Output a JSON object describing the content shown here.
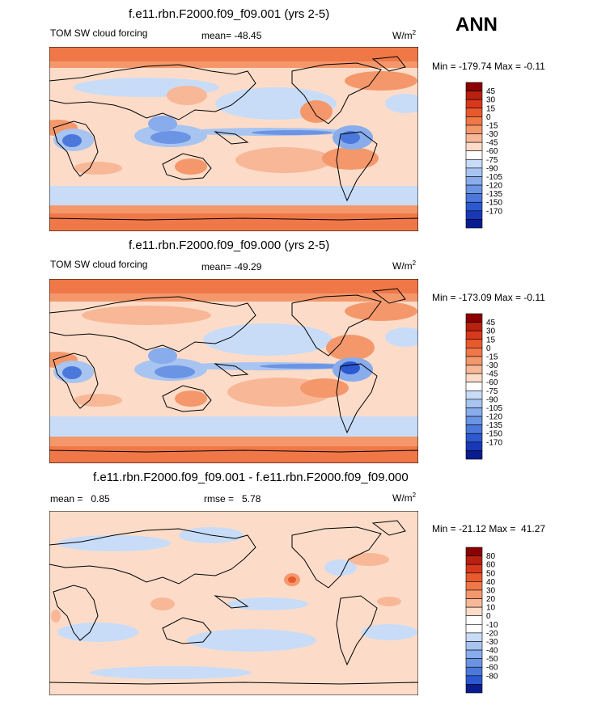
{
  "season": "ANN",
  "units": "W/m",
  "units_sup": "2",
  "panels": [
    {
      "title": "f.e11.rbn.F2000.f09_f09.001 (yrs 2-5)",
      "left_label": "TOM SW cloud forcing",
      "center_label": "mean= -48.45",
      "minmax": "Min = -179.74 Max =  -0.11",
      "colorbar": {
        "colors": [
          "#8b0000",
          "#b82010",
          "#d8381c",
          "#e85a2c",
          "#f07848",
          "#f4986c",
          "#f8b898",
          "#fcdcc8",
          "#ffffff",
          "#c8dcf8",
          "#a8c4f0",
          "#88acec",
          "#6c94e4",
          "#4c78dc",
          "#2c58d0",
          "#1838b8",
          "#081c90"
        ],
        "labels": [
          "45",
          "30",
          "15",
          "0",
          "-15",
          "-30",
          "-45",
          "-60",
          "-75",
          "-90",
          "-105",
          "-120",
          "-135",
          "-150",
          "-170"
        ]
      }
    },
    {
      "title": "f.e11.rbn.F2000.f09_f09.000 (yrs 2-5)",
      "left_label": "TOM SW cloud forcing",
      "center_label": "mean= -49.29",
      "minmax": "Min = -173.09 Max =  -0.11",
      "colorbar": {
        "colors": [
          "#8b0000",
          "#b82010",
          "#d8381c",
          "#e85a2c",
          "#f07848",
          "#f4986c",
          "#f8b898",
          "#fcdcc8",
          "#ffffff",
          "#c8dcf8",
          "#a8c4f0",
          "#88acec",
          "#6c94e4",
          "#4c78dc",
          "#2c58d0",
          "#1838b8",
          "#081c90"
        ],
        "labels": [
          "45",
          "30",
          "15",
          "0",
          "-15",
          "-30",
          "-45",
          "-60",
          "-75",
          "-90",
          "-105",
          "-120",
          "-135",
          "-150",
          "-170"
        ]
      }
    },
    {
      "title": "f.e11.rbn.F2000.f09_f09.001 - f.e11.rbn.F2000.f09_f09.000",
      "left_label": "mean =   0.85",
      "center_label": "rmse =   5.78",
      "minmax": "Min = -21.12 Max =  41.27",
      "colorbar": {
        "colors": [
          "#8b0000",
          "#b82010",
          "#d8381c",
          "#e85a2c",
          "#f07848",
          "#f4986c",
          "#f8b898",
          "#fcdcc8",
          "#ffffff",
          "#ffffff",
          "#c8dcf8",
          "#a8c4f0",
          "#88acec",
          "#6c94e4",
          "#4c78dc",
          "#2c58d0",
          "#081c90"
        ],
        "labels": [
          "80",
          "60",
          "50",
          "40",
          "30",
          "20",
          "10",
          "0",
          "-10",
          "-20",
          "-30",
          "-40",
          "-50",
          "-60",
          "-80"
        ]
      }
    }
  ]
}
